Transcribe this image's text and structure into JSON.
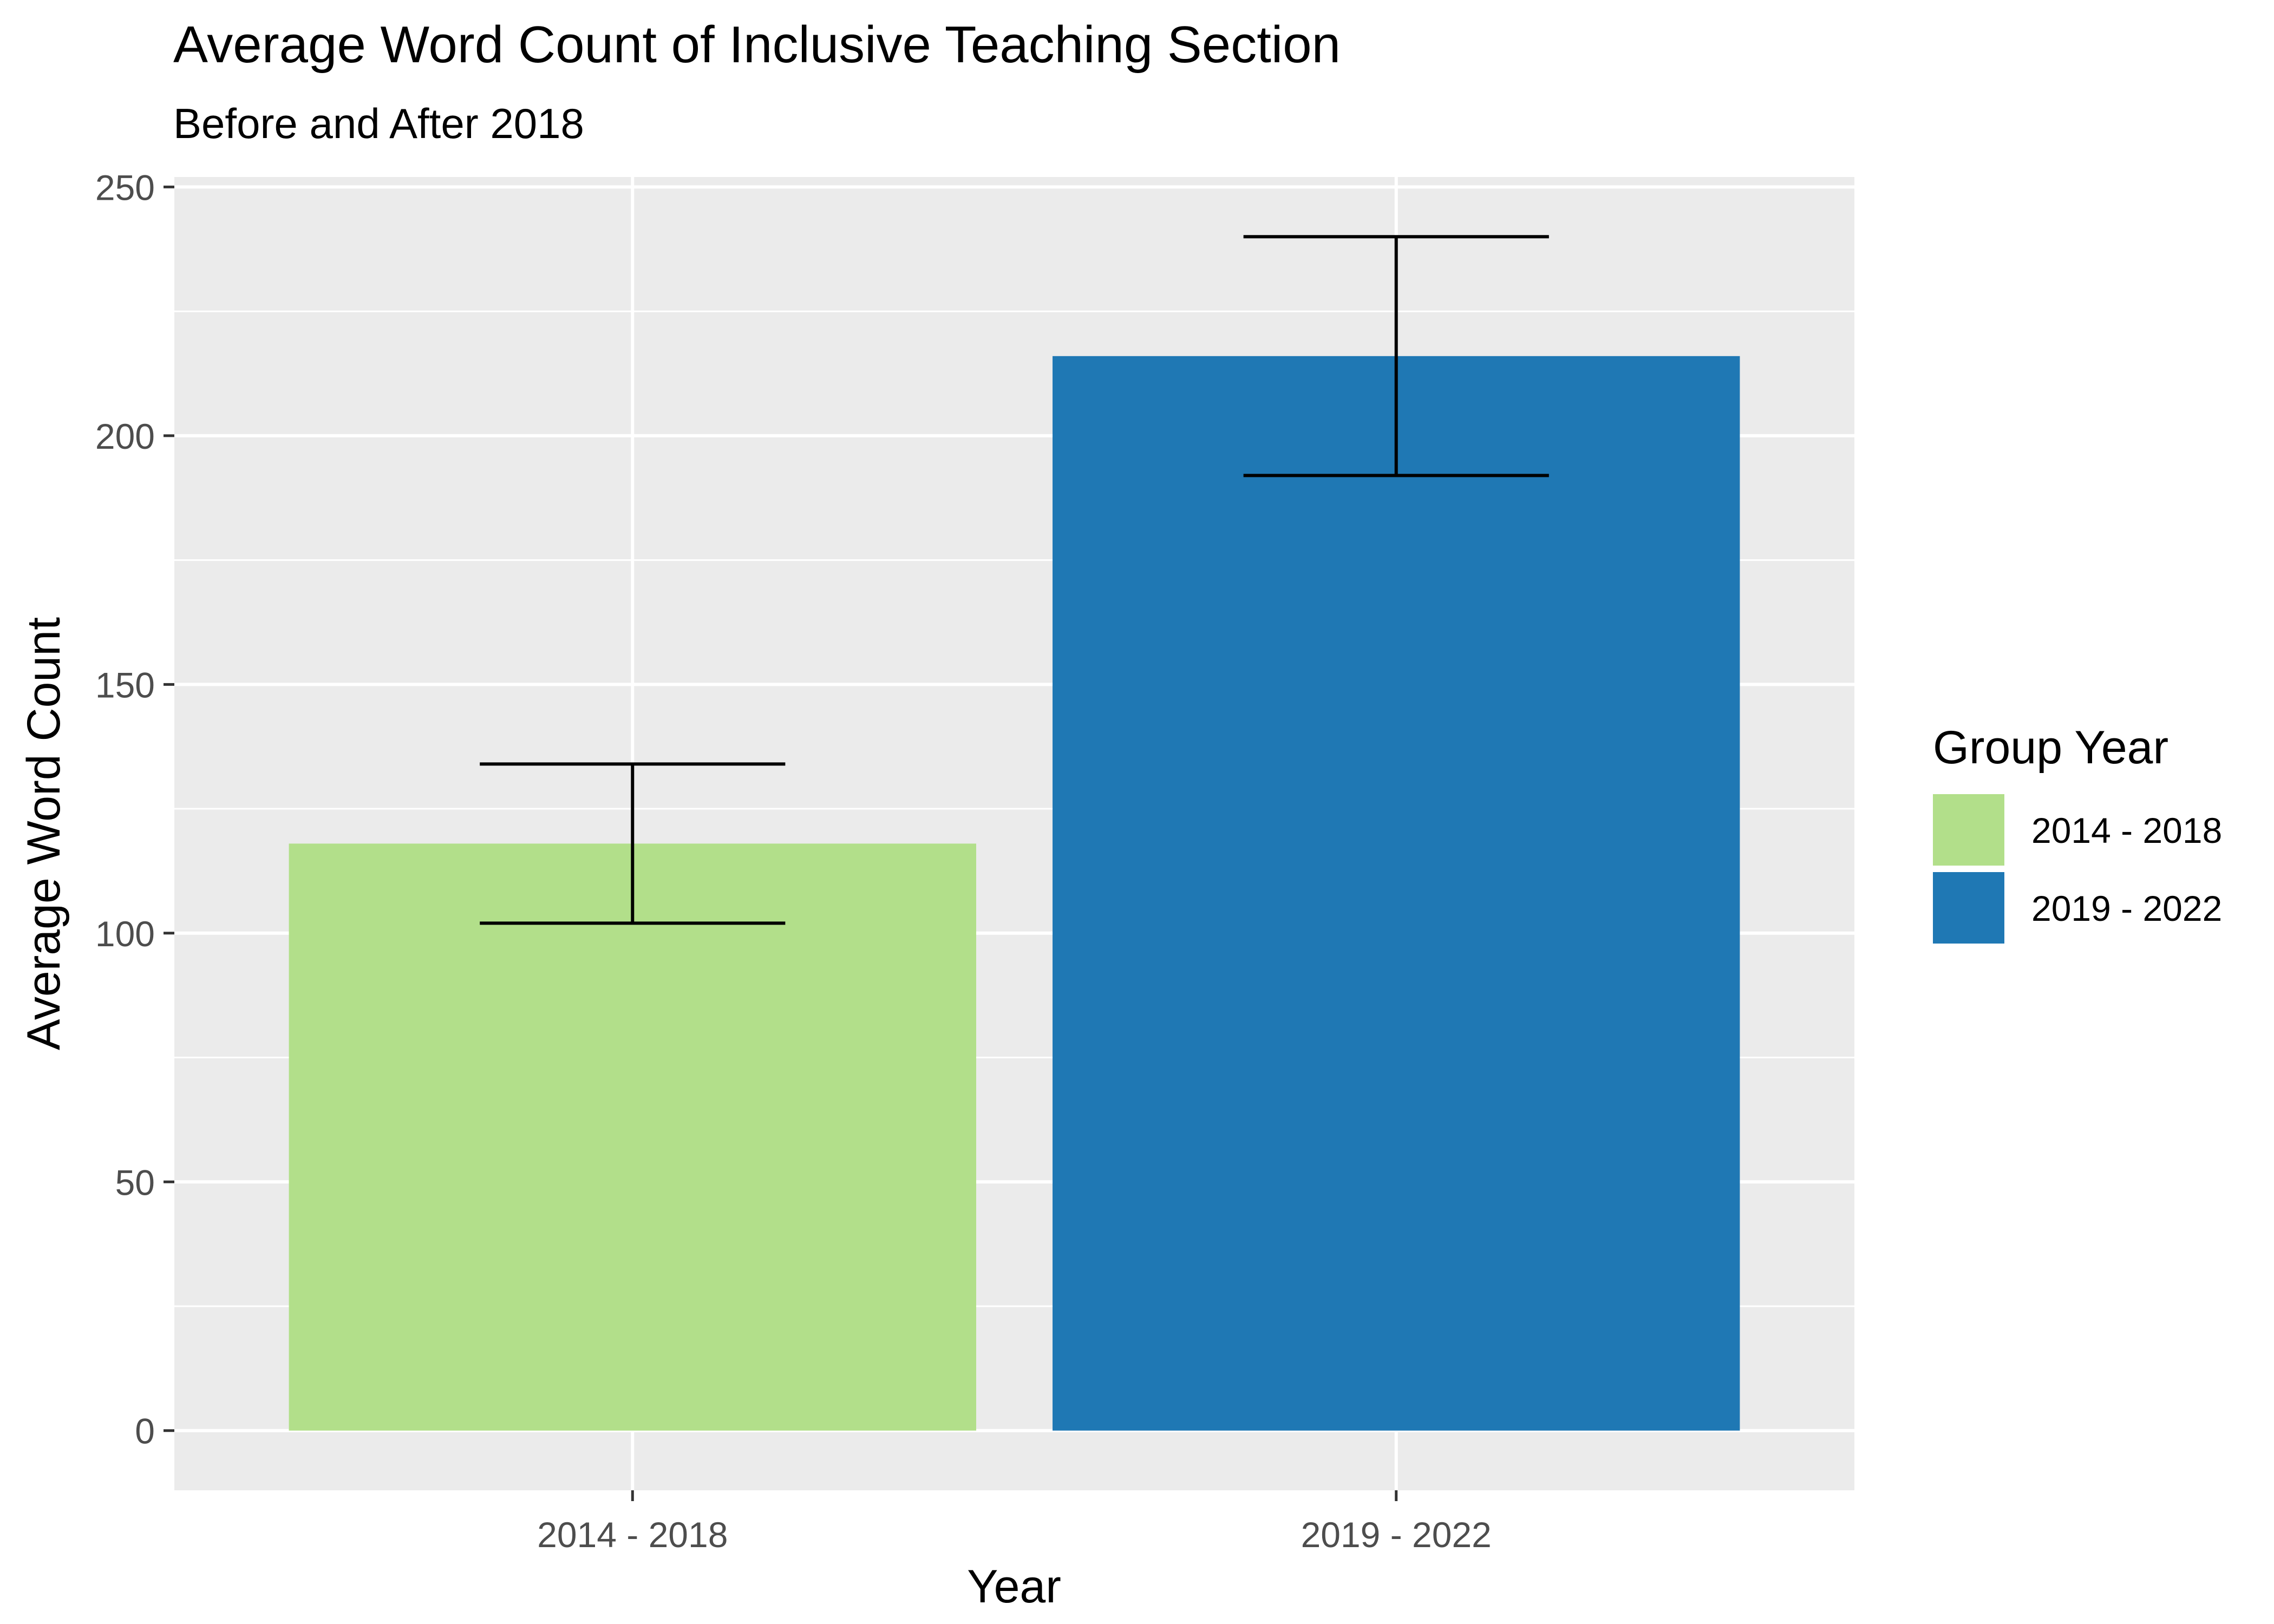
{
  "chart_data": {
    "type": "bar",
    "title": "Average Word Count of Inclusive Teaching Section",
    "subtitle": "Before and After 2018",
    "xlabel": "Year",
    "ylabel": "Average Word Count",
    "categories": [
      "2014 - 2018",
      "2019 - 2022"
    ],
    "values": [
      118,
      216
    ],
    "error_bars": [
      {
        "lower": 102,
        "upper": 134
      },
      {
        "lower": 192,
        "upper": 240
      }
    ],
    "colors": [
      "#b2df8a",
      "#1f78b4"
    ],
    "ylim": [
      -12,
      252
    ],
    "yticks": [
      0,
      50,
      100,
      150,
      200,
      250
    ],
    "grid": true,
    "panel_background": "#ebebeb",
    "legend": {
      "title": "Group Year",
      "position": "right",
      "items": [
        "2014 - 2018",
        "2019 - 2022"
      ]
    }
  }
}
